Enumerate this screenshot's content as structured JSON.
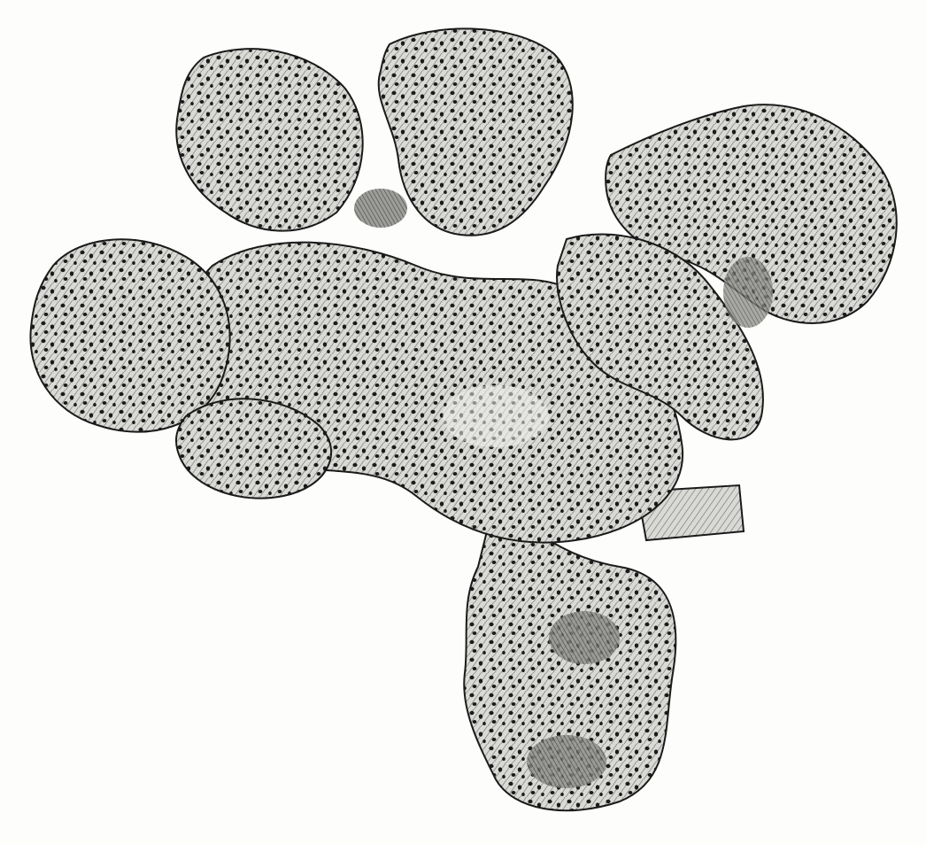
{
  "image": {
    "subject": "coral-engraving",
    "style": "black-and-white engraving",
    "colors": {
      "background": "#fdfdfc",
      "ink": "#1a1a1a",
      "body_fill": "#cfcfcb",
      "mid_tone": "#9a9a96",
      "shadow": "#4a4a48"
    }
  }
}
